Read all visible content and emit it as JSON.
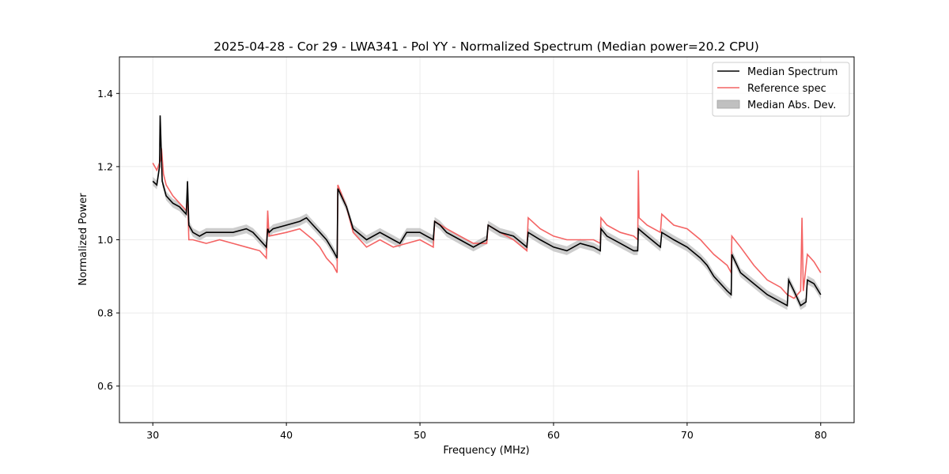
{
  "chart_data": {
    "type": "line",
    "title": "2025-04-28 - Cor 29 - LWA341 - Pol YY - Normalized Spectrum (Median power=20.2 CPU)",
    "xlabel": "Frequency (MHz)",
    "ylabel": "Normalized Power",
    "xlim": [
      27.5,
      82.5
    ],
    "ylim": [
      0.5,
      1.5
    ],
    "xticks": [
      30,
      40,
      50,
      60,
      70,
      80
    ],
    "yticks": [
      0.6,
      0.8,
      1.0,
      1.2,
      1.4
    ],
    "xtick_labels": [
      "30",
      "40",
      "50",
      "60",
      "70",
      "80"
    ],
    "ytick_labels": [
      "0.6",
      "0.8",
      "1.0",
      "1.2",
      "1.4"
    ],
    "grid": true,
    "legend_position": "top-right",
    "legend": [
      "Median Spectrum",
      "Reference spec",
      "Median Abs. Dev."
    ],
    "colors": {
      "median": "#000000",
      "reference": "#f46363",
      "mad": "#c0c0c0",
      "grid": "#e6e6e6"
    },
    "series": [
      {
        "name": "Median Spectrum",
        "x": [
          30.0,
          30.3,
          30.5,
          30.55,
          30.7,
          31.0,
          31.5,
          32.0,
          32.5,
          32.6,
          32.7,
          33.0,
          33.5,
          34.0,
          35.0,
          36.0,
          37.0,
          37.5,
          38.0,
          38.5,
          38.6,
          38.7,
          39.0,
          40.0,
          41.0,
          41.5,
          42.0,
          42.5,
          43.0,
          43.5,
          43.8,
          43.85,
          44.5,
          45.0,
          46.0,
          47.0,
          48.0,
          48.5,
          49.0,
          50.0,
          50.5,
          51.0,
          51.1,
          51.5,
          52.0,
          53.0,
          54.0,
          55.0,
          55.1,
          56.0,
          57.0,
          58.0,
          58.1,
          59.0,
          60.0,
          61.0,
          62.0,
          63.0,
          63.5,
          63.55,
          64.0,
          65.0,
          66.0,
          66.3,
          66.35,
          67.0,
          68.0,
          68.1,
          69.0,
          70.0,
          71.0,
          71.5,
          72.0,
          73.0,
          73.3,
          73.35,
          74.0,
          75.0,
          76.0,
          77.0,
          77.5,
          77.6,
          78.0,
          78.5,
          78.9,
          79.0,
          79.5,
          80.0
        ],
        "values": [
          1.16,
          1.15,
          1.2,
          1.34,
          1.16,
          1.12,
          1.1,
          1.09,
          1.07,
          1.16,
          1.04,
          1.02,
          1.01,
          1.02,
          1.02,
          1.02,
          1.03,
          1.02,
          1.0,
          0.98,
          1.03,
          1.02,
          1.03,
          1.04,
          1.05,
          1.06,
          1.04,
          1.02,
          1.0,
          0.97,
          0.95,
          1.14,
          1.09,
          1.03,
          1.0,
          1.02,
          1.0,
          0.99,
          1.02,
          1.02,
          1.01,
          1.0,
          1.05,
          1.04,
          1.02,
          1.0,
          0.98,
          1.0,
          1.04,
          1.02,
          1.01,
          0.98,
          1.02,
          1.0,
          0.98,
          0.97,
          0.99,
          0.98,
          0.97,
          1.03,
          1.01,
          0.99,
          0.97,
          0.97,
          1.03,
          1.01,
          0.98,
          1.02,
          1.0,
          0.98,
          0.95,
          0.93,
          0.9,
          0.86,
          0.85,
          0.96,
          0.91,
          0.88,
          0.85,
          0.83,
          0.82,
          0.89,
          0.86,
          0.82,
          0.83,
          0.89,
          0.88,
          0.85
        ]
      },
      {
        "name": "Reference spec",
        "x": [
          30.0,
          30.3,
          30.6,
          30.65,
          30.8,
          31.0,
          31.5,
          32.0,
          32.5,
          32.6,
          32.7,
          33.0,
          34.0,
          35.0,
          36.0,
          37.0,
          38.0,
          38.5,
          38.6,
          38.7,
          40.0,
          41.0,
          42.0,
          42.5,
          43.0,
          43.5,
          43.8,
          43.85,
          44.5,
          45.0,
          46.0,
          47.0,
          48.0,
          49.0,
          50.0,
          51.0,
          51.1,
          52.0,
          53.0,
          54.0,
          55.0,
          55.1,
          56.0,
          57.0,
          58.0,
          58.1,
          59.0,
          60.0,
          61.0,
          62.0,
          63.0,
          63.5,
          63.55,
          64.0,
          65.0,
          66.0,
          66.3,
          66.35,
          66.4,
          67.0,
          68.0,
          68.1,
          69.0,
          70.0,
          71.0,
          72.0,
          73.0,
          73.3,
          73.35,
          74.0,
          75.0,
          76.0,
          77.0,
          77.5,
          78.0,
          78.5,
          78.6,
          78.7,
          79.0,
          79.5,
          80.0
        ],
        "values": [
          1.21,
          1.19,
          1.22,
          1.25,
          1.18,
          1.15,
          1.12,
          1.1,
          1.08,
          1.12,
          1.0,
          1.0,
          0.99,
          1.0,
          0.99,
          0.98,
          0.97,
          0.95,
          1.08,
          1.01,
          1.02,
          1.03,
          1.0,
          0.98,
          0.95,
          0.93,
          0.91,
          1.15,
          1.09,
          1.02,
          0.98,
          1.0,
          0.98,
          0.99,
          1.0,
          0.98,
          1.05,
          1.03,
          1.01,
          0.99,
          0.99,
          1.04,
          1.02,
          1.0,
          0.97,
          1.06,
          1.03,
          1.01,
          1.0,
          1.0,
          1.0,
          0.99,
          1.06,
          1.04,
          1.02,
          1.01,
          1.0,
          1.19,
          1.06,
          1.04,
          1.02,
          1.07,
          1.04,
          1.03,
          1.0,
          0.96,
          0.93,
          0.91,
          1.01,
          0.98,
          0.93,
          0.89,
          0.87,
          0.85,
          0.84,
          0.86,
          1.06,
          0.86,
          0.96,
          0.94,
          0.91
        ]
      },
      {
        "name": "Median Abs. Dev.",
        "band_width": 0.012
      }
    ]
  }
}
